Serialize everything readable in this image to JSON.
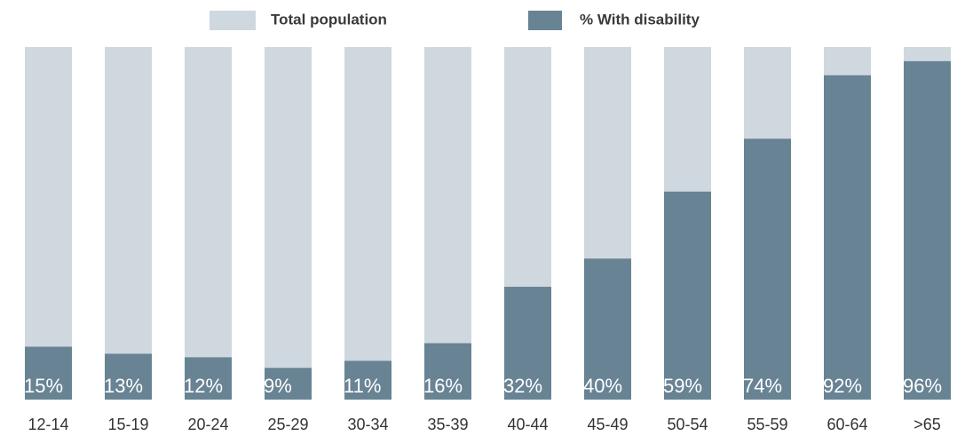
{
  "chart_data": {
    "type": "bar",
    "mode": "overlay",
    "categories": [
      "12-14",
      "15-19",
      "20-24",
      "25-29",
      "30-34",
      "35-39",
      "40-44",
      "45-49",
      "50-54",
      "55-59",
      "60-64",
      ">65"
    ],
    "series": [
      {
        "name": "Total population",
        "color": "#cfd8df",
        "values": [
          100,
          100,
          100,
          100,
          100,
          100,
          100,
          100,
          100,
          100,
          100,
          100
        ]
      },
      {
        "name": "% With disability",
        "color": "#688394",
        "values": [
          15,
          13,
          12,
          9,
          11,
          16,
          32,
          40,
          59,
          74,
          92,
          96
        ],
        "value_labels": [
          "15%",
          "13%",
          "12%",
          "9%",
          "11%",
          "16%",
          "32%",
          "40%",
          "59%",
          "74%",
          "92%",
          "96%"
        ]
      }
    ],
    "ylim": [
      0,
      100
    ],
    "legend": "top"
  }
}
